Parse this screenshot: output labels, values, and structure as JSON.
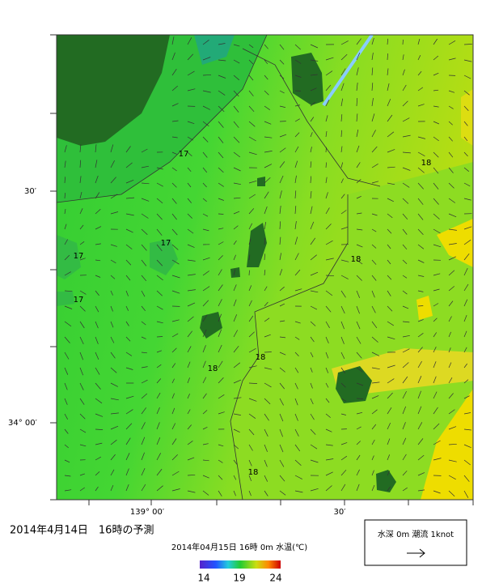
{
  "map": {
    "title": "2014年4月14日　16時の予測",
    "subtitle": "2014年04月15日 16時 0m 水温(℃)",
    "lat_labels": [
      "30′",
      "34° 00′"
    ],
    "lon_labels": [
      "139° 00′",
      "30′"
    ],
    "contour_labels": [
      "17",
      "17",
      "17",
      "17",
      "18",
      "18",
      "18",
      "18",
      "18"
    ],
    "colorbar_ticks": [
      "14",
      "19",
      "24"
    ],
    "legend": "水深 0m 潮流 1knot"
  }
}
